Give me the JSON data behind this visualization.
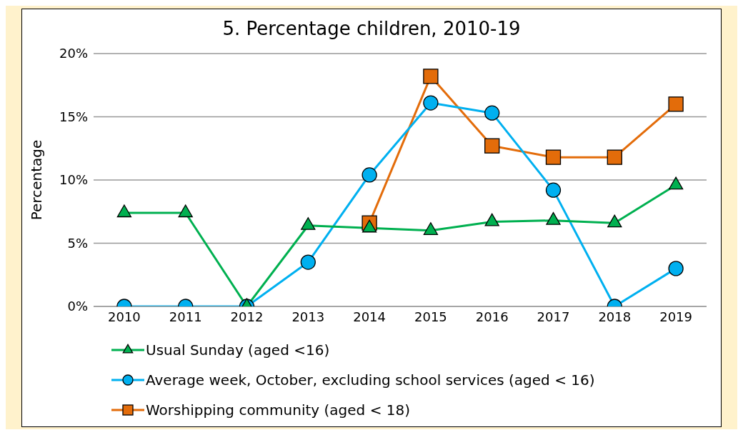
{
  "chart_data": {
    "type": "line",
    "title": "5. Percentage children, 2010-19",
    "ylabel": "Percentage",
    "categories": [
      "2010",
      "2011",
      "2012",
      "2013",
      "2014",
      "2015",
      "2016",
      "2017",
      "2018",
      "2019"
    ],
    "series": [
      {
        "name": "Usual Sunday (aged <16)",
        "color": "#00b050",
        "marker": "triangle",
        "values": [
          7.4,
          7.4,
          0,
          6.4,
          6.2,
          6.0,
          6.7,
          6.8,
          6.6,
          9.6
        ]
      },
      {
        "name": "Average week, October, excluding school services (aged < 16)",
        "color": "#00b0f0",
        "marker": "circle",
        "values": [
          0,
          0,
          0,
          3.5,
          10.4,
          16.1,
          15.3,
          9.2,
          0,
          3.0
        ]
      },
      {
        "name": "Worshipping community (aged < 18)",
        "color": "#e36c0a",
        "marker": "square",
        "values": [
          null,
          null,
          null,
          null,
          6.6,
          18.2,
          12.7,
          11.8,
          11.8,
          16.0
        ]
      }
    ],
    "ylim": [
      0,
      20
    ],
    "yticks": [
      {
        "value": 0,
        "label": "0%"
      },
      {
        "value": 5,
        "label": "5%"
      },
      {
        "value": 10,
        "label": "10%"
      },
      {
        "value": 15,
        "label": "15%"
      },
      {
        "value": 20,
        "label": "20%"
      }
    ],
    "grid": "y",
    "legend": "bottom",
    "line_style": "solid"
  }
}
